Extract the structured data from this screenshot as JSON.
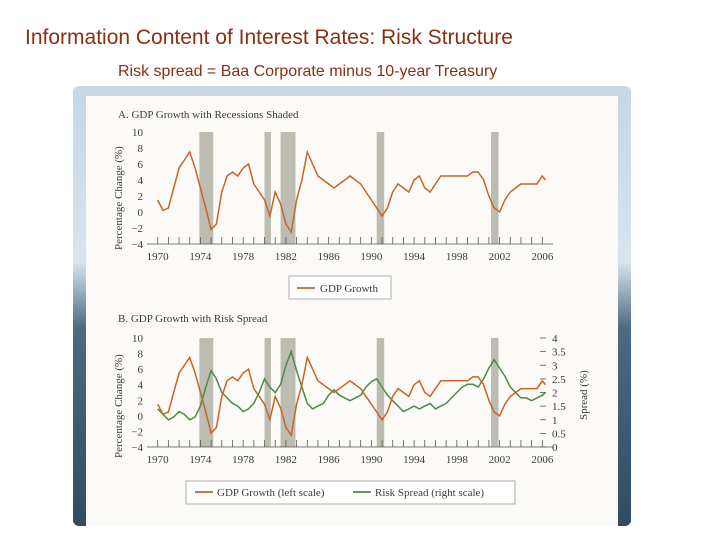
{
  "slide": {
    "title": "Information Content of Interest Rates: Risk Structure",
    "subtitle": "Risk spread = Baa Corporate minus 10-year Treasury"
  },
  "colors": {
    "gdp": "#c8642a",
    "spread": "#4e8a45",
    "recession": "#bdbcb2",
    "title": "#8a2f12"
  },
  "recessions": [
    [
      1973.9,
      1975.2
    ],
    [
      1980.0,
      1980.6
    ],
    [
      1981.5,
      1982.9
    ],
    [
      1990.5,
      1991.2
    ],
    [
      2001.2,
      2001.9
    ]
  ],
  "chart_data": [
    {
      "type": "line",
      "title": "A. GDP Growth with Recessions Shaded",
      "ylabel": "Percentage Change (%)",
      "xlim": [
        1969,
        2007
      ],
      "ylim": [
        -4,
        10
      ],
      "yticks": [
        "10",
        "8",
        "6",
        "4",
        "2",
        "0",
        "−2",
        "−4"
      ],
      "xticks": [
        "1970",
        "1974",
        "1978",
        "1982",
        "1986",
        "1990",
        "1994",
        "1998",
        "2002",
        "2006"
      ],
      "legend": "GDP Growth",
      "series": [
        {
          "name": "GDP Growth",
          "x": [
            1970,
            1970.5,
            1971,
            1971.5,
            1972,
            1972.5,
            1973,
            1973.5,
            1974,
            1974.5,
            1975,
            1975.5,
            1976,
            1976.5,
            1977,
            1977.5,
            1978,
            1978.5,
            1979,
            1979.5,
            1980,
            1980.5,
            1981,
            1981.5,
            1982,
            1982.5,
            1983,
            1983.5,
            1984,
            1984.5,
            1985,
            1985.5,
            1986,
            1986.5,
            1987,
            1987.5,
            1988,
            1988.5,
            1989,
            1989.5,
            1990,
            1990.5,
            1991,
            1991.5,
            1992,
            1992.5,
            1993,
            1993.5,
            1994,
            1994.5,
            1995,
            1995.5,
            1996,
            1996.5,
            1997,
            1997.5,
            1998,
            1998.5,
            1999,
            1999.5,
            2000,
            2000.5,
            2001,
            2001.5,
            2002,
            2002.5,
            2003,
            2003.5,
            2004,
            2004.5,
            2005,
            2005.5,
            2006,
            2006.3
          ],
          "values": [
            1.5,
            0.2,
            0.5,
            3,
            5.5,
            6.5,
            7.5,
            5.5,
            3,
            0.5,
            -2.2,
            -1.5,
            2.5,
            4.5,
            5,
            4.5,
            5.5,
            6,
            3.5,
            2.5,
            1.5,
            -0.5,
            2.5,
            1,
            -1.5,
            -2.5,
            1.5,
            4,
            7.5,
            6,
            4.5,
            4,
            3.5,
            3,
            3.5,
            4,
            4.5,
            4,
            3.5,
            2.5,
            1.5,
            0.5,
            -0.5,
            0.5,
            2.5,
            3.5,
            3,
            2.5,
            4,
            4.5,
            3,
            2.5,
            3.5,
            4.5,
            4.5,
            4.5,
            4.5,
            4.5,
            4.5,
            5,
            5,
            4,
            2,
            0.5,
            0,
            1.5,
            2.5,
            3,
            3.5,
            3.5,
            3.5,
            3.5,
            4.5,
            4
          ]
        }
      ]
    },
    {
      "type": "line",
      "title": "B. GDP Growth with Risk Spread",
      "ylabel": "Percentage Change (%)",
      "ylabel_right": "Spread (%)",
      "xlim": [
        1969,
        2007
      ],
      "ylim": [
        -4,
        10
      ],
      "ylim_right": [
        0,
        4
      ],
      "yticks": [
        "10",
        "8",
        "6",
        "4",
        "2",
        "0",
        "−2",
        "−4"
      ],
      "yticks_right": [
        "4",
        "3.5",
        "3",
        "2.5",
        "2",
        "1.5",
        "1",
        "0.5",
        "0"
      ],
      "xticks": [
        "1970",
        "1974",
        "1978",
        "1982",
        "1986",
        "1990",
        "1994",
        "1998",
        "2002",
        "2006"
      ],
      "legend_gdp": "GDP Growth (left scale)",
      "legend_spread": "Risk Spread (right scale)",
      "series": [
        {
          "name": "GDP Growth (left scale)",
          "x": [
            1970,
            1970.5,
            1971,
            1971.5,
            1972,
            1972.5,
            1973,
            1973.5,
            1974,
            1974.5,
            1975,
            1975.5,
            1976,
            1976.5,
            1977,
            1977.5,
            1978,
            1978.5,
            1979,
            1979.5,
            1980,
            1980.5,
            1981,
            1981.5,
            1982,
            1982.5,
            1983,
            1983.5,
            1984,
            1984.5,
            1985,
            1985.5,
            1986,
            1986.5,
            1987,
            1987.5,
            1988,
            1988.5,
            1989,
            1989.5,
            1990,
            1990.5,
            1991,
            1991.5,
            1992,
            1992.5,
            1993,
            1993.5,
            1994,
            1994.5,
            1995,
            1995.5,
            1996,
            1996.5,
            1997,
            1997.5,
            1998,
            1998.5,
            1999,
            1999.5,
            2000,
            2000.5,
            2001,
            2001.5,
            2002,
            2002.5,
            2003,
            2003.5,
            2004,
            2004.5,
            2005,
            2005.5,
            2006,
            2006.3
          ],
          "values": [
            1.5,
            0.2,
            0.5,
            3,
            5.5,
            6.5,
            7.5,
            5.5,
            3,
            0.5,
            -2.2,
            -1.5,
            2.5,
            4.5,
            5,
            4.5,
            5.5,
            6,
            3.5,
            2.5,
            1.5,
            -0.5,
            2.5,
            1,
            -1.5,
            -2.5,
            1.5,
            4,
            7.5,
            6,
            4.5,
            4,
            3.5,
            3,
            3.5,
            4,
            4.5,
            4,
            3.5,
            2.5,
            1.5,
            0.5,
            -0.5,
            0.5,
            2.5,
            3.5,
            3,
            2.5,
            4,
            4.5,
            3,
            2.5,
            3.5,
            4.5,
            4.5,
            4.5,
            4.5,
            4.5,
            4.5,
            5,
            5,
            4,
            2,
            0.5,
            0,
            1.5,
            2.5,
            3,
            3.5,
            3.5,
            3.5,
            3.5,
            4.5,
            4
          ]
        },
        {
          "name": "Risk Spread (right scale)",
          "x": [
            1970,
            1970.5,
            1971,
            1971.5,
            1972,
            1972.5,
            1973,
            1973.5,
            1974,
            1974.5,
            1975,
            1975.5,
            1976,
            1976.5,
            1977,
            1977.5,
            1978,
            1978.5,
            1979,
            1979.5,
            1980,
            1980.5,
            1981,
            1981.5,
            1982,
            1982.5,
            1983,
            1983.5,
            1984,
            1984.5,
            1985,
            1985.5,
            1986,
            1986.5,
            1987,
            1987.5,
            1988,
            1988.5,
            1989,
            1989.5,
            1990,
            1990.5,
            1991,
            1991.5,
            1992,
            1992.5,
            1993,
            1993.5,
            1994,
            1994.5,
            1995,
            1995.5,
            1996,
            1996.5,
            1997,
            1997.5,
            1998,
            1998.5,
            1999,
            1999.5,
            2000,
            2000.5,
            2001,
            2001.5,
            2002,
            2002.5,
            2003,
            2003.5,
            2004,
            2004.5,
            2005,
            2005.5,
            2006,
            2006.3
          ],
          "values": [
            1.4,
            1.2,
            1.0,
            1.1,
            1.3,
            1.2,
            1.0,
            1.1,
            1.5,
            2.2,
            2.8,
            2.5,
            2.0,
            1.8,
            1.6,
            1.5,
            1.3,
            1.4,
            1.6,
            2.0,
            2.5,
            2.2,
            2.0,
            2.3,
            3.0,
            3.5,
            2.8,
            2.2,
            1.6,
            1.4,
            1.5,
            1.6,
            1.9,
            2.1,
            1.9,
            1.8,
            1.7,
            1.8,
            1.9,
            2.2,
            2.4,
            2.5,
            2.2,
            1.9,
            1.7,
            1.5,
            1.3,
            1.4,
            1.5,
            1.4,
            1.5,
            1.6,
            1.4,
            1.5,
            1.6,
            1.8,
            2.0,
            2.2,
            2.3,
            2.3,
            2.2,
            2.5,
            2.9,
            3.2,
            2.9,
            2.6,
            2.2,
            2.0,
            1.8,
            1.8,
            1.7,
            1.8,
            1.9,
            2.0
          ]
        }
      ]
    }
  ]
}
